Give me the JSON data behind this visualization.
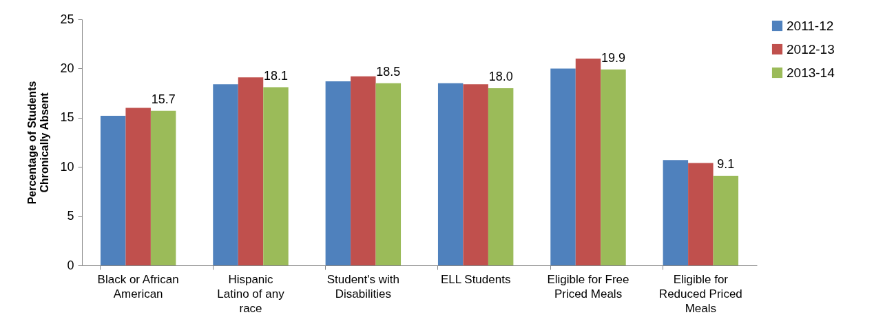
{
  "chart_data": {
    "type": "bar",
    "ylabel": "Percentage of Students\nChronically Absent",
    "categories": [
      "Black or African\nAmerican",
      "Hispanic\nLatino of any\nrace",
      "Student's with\nDisabilities",
      "ELL Students",
      "Eligible for Free\nPriced Meals",
      "Eligible for\nReduced Priced\nMeals"
    ],
    "series": [
      {
        "name": "2011-12",
        "color": "#4f81bd",
        "values": [
          15.2,
          18.4,
          18.7,
          18.5,
          20.0,
          10.7
        ]
      },
      {
        "name": "2012-13",
        "color": "#c0504d",
        "values": [
          16.0,
          19.1,
          19.2,
          18.4,
          21.0,
          10.4
        ]
      },
      {
        "name": "2013-14",
        "color": "#9bbb59",
        "values": [
          15.7,
          18.1,
          18.5,
          18.0,
          19.9,
          9.1
        ],
        "value_labels": [
          "15.7",
          "18.1",
          "18.5",
          "18.0",
          "19.9",
          "9.1"
        ]
      }
    ],
    "ylim": [
      0,
      25
    ],
    "yticks": [
      0,
      5,
      10,
      15,
      20,
      25
    ],
    "legend": "right"
  }
}
